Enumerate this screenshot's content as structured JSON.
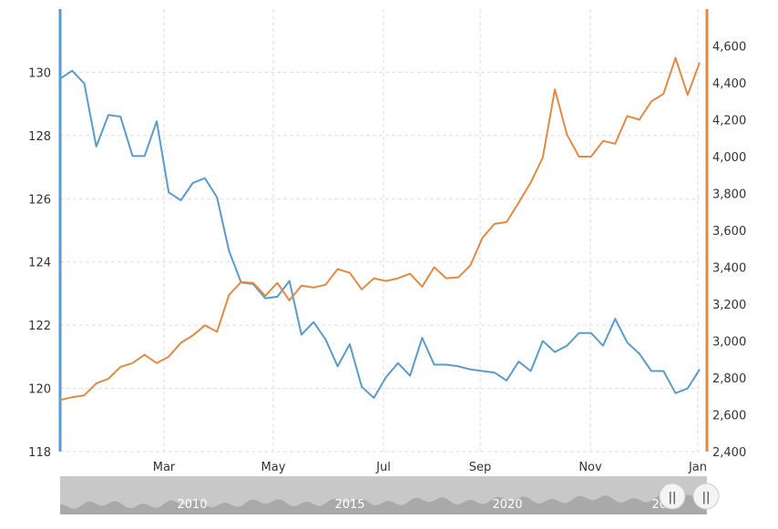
{
  "chart_data": {
    "type": "line",
    "title": "",
    "xlabel": "",
    "ylabel_left": "",
    "ylabel_right": "",
    "x_ticks": [
      "Mar",
      "May",
      "Jul",
      "Sep",
      "Nov",
      "Jan"
    ],
    "y_left": {
      "ylim": [
        118,
        132
      ],
      "ticks": [
        "118",
        "120",
        "122",
        "124",
        "126",
        "128",
        "130"
      ],
      "color": "#5b9bc9"
    },
    "y_right": {
      "ylim": [
        2400,
        4800
      ],
      "ticks": [
        "2,400",
        "2,600",
        "2,800",
        "3,000",
        "3,200",
        "3,400",
        "3,600",
        "3,800",
        "4,000",
        "4,200",
        "4,400",
        "4,600"
      ],
      "color": "#e08a45"
    },
    "grid": true,
    "series": [
      {
        "axis": "left",
        "color": "#5b9bc9",
        "values": [
          129.8,
          130.05,
          129.65,
          127.65,
          128.65,
          128.6,
          127.35,
          127.35,
          128.45,
          126.2,
          125.95,
          126.5,
          126.65,
          126.05,
          124.35,
          123.35,
          123.3,
          122.85,
          122.9,
          123.4,
          121.7,
          122.1,
          121.55,
          120.7,
          121.4,
          120.05,
          119.7,
          120.35,
          120.8,
          120.4,
          121.6,
          120.75,
          120.75,
          120.7,
          120.6,
          120.55,
          120.5,
          120.25,
          120.85,
          120.55,
          121.5,
          121.15,
          121.35,
          121.75,
          121.75,
          121.35,
          122.2,
          121.45,
          121.1,
          120.55,
          120.55,
          119.85,
          120.0,
          120.6
        ]
      },
      {
        "axis": "right",
        "color": "#e08a45",
        "values": [
          2680,
          2695,
          2705,
          2770,
          2795,
          2860,
          2880,
          2925,
          2880,
          2915,
          2990,
          3030,
          3085,
          3050,
          3250,
          3320,
          3315,
          3245,
          3315,
          3220,
          3300,
          3290,
          3305,
          3390,
          3370,
          3280,
          3340,
          3325,
          3340,
          3365,
          3295,
          3400,
          3340,
          3345,
          3410,
          3560,
          3635,
          3645,
          3750,
          3860,
          3995,
          4365,
          4120,
          4000,
          4000,
          4085,
          4070,
          4220,
          4200,
          4300,
          4340,
          4535,
          4335,
          4510
        ]
      }
    ]
  },
  "navigator": {
    "year_labels": [
      "2010",
      "2015",
      "2020",
      "2025"
    ],
    "handle_glyph": "||"
  }
}
